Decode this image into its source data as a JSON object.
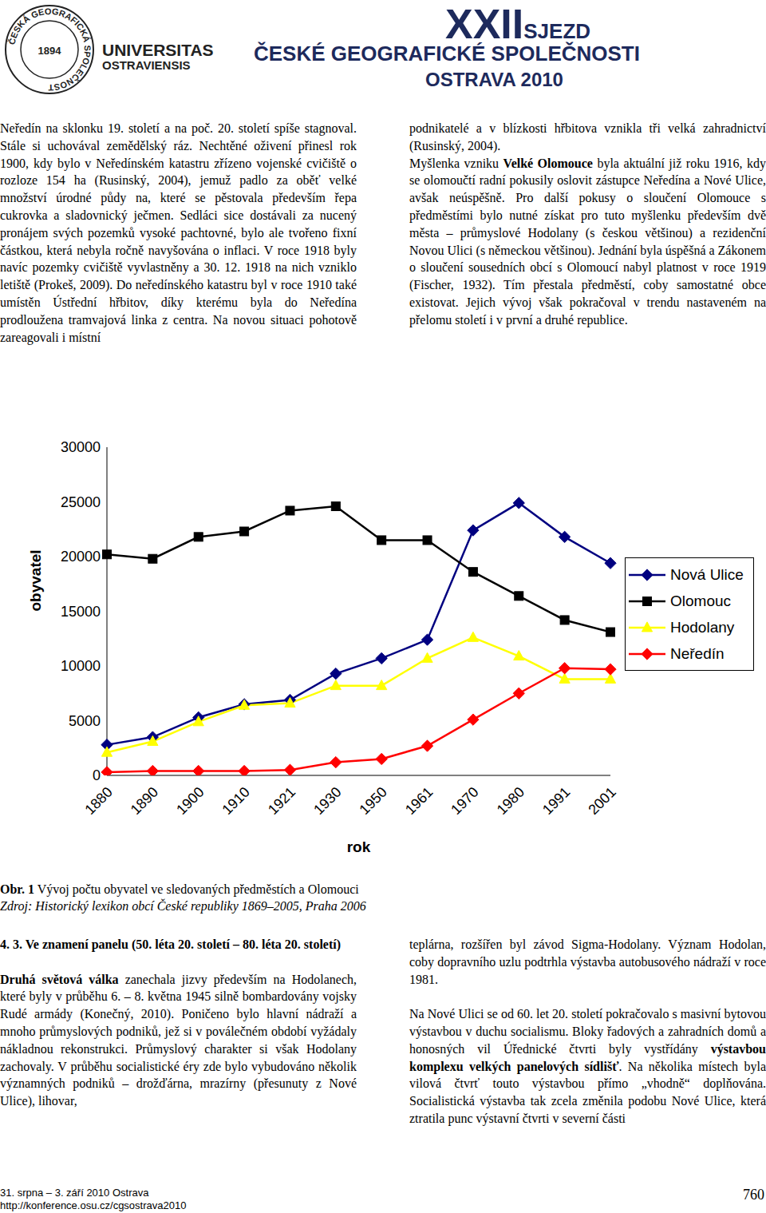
{
  "header": {
    "logo_ring": "ČESKÁ GEOGRAFICKÁ SPOLEČNOST",
    "logo_year": "1894",
    "university": [
      "UNIVERSITAS",
      "OSTRAVIENSIS"
    ],
    "congress_number": "XXII",
    "congress_word": "SJEZD",
    "society": "ČESKÉ GEOGRAFICKÉ SPOLEČNOSTI",
    "place": "OSTRAVA 2010"
  },
  "top_columns": [
    [
      [
        {
          "text": "Neředín na sklonku 19. století a na poč. 20. století spíše stagnoval. Stále si uchovával zemědělský ráz. Nechtěné oživení přinesl rok 1900, kdy bylo v Neředínském katastru zřízeno vojenské cvičiště o rozloze 154 ha (Rusinský, 2004), jemuž padlo za oběť velké množství úrodné půdy na, které se pěstovala především řepa cukrovka a sladovnický ječmen. Sedláci sice dostávali za nucený pronájem svých pozemků vysoké pachtovné, bylo ale tvořeno fixní částkou, která nebyla ročně navyšována o inflaci. V roce 1918 byly navíc pozemky cvičiště vyvlastněny a 30. 12. 1918 na nich vzniklo letiště (Prokeš, 2009). Do neředínského katastru byl v roce 1910 také umístěn Ústřední hřbitov, díky kterému byla do Neředína prodloužena tramvajová linka z centra. Na novou situaci pohotově zareagovali i místní"
        }
      ]
    ],
    [
      [
        {
          "text": "podnikatelé a v blízkosti hřbitova vznikla tři velká zahradnictví (Rusinský, 2004)."
        }
      ],
      [
        {
          "text": "Myšlenka vzniku "
        },
        {
          "text": "Velké Olomouce",
          "bold": true
        },
        {
          "text": " byla aktuální již roku 1916, kdy se olomoučtí radní pokusily oslovit zástupce Neředína a Nové Ulice, avšak neúspěšně. Pro další pokusy o sloučení Olomouce s předměstími bylo nutné získat pro tuto myšlenku především dvě města – průmyslové Hodolany (s českou většinou) a rezidenční Novou Ulici (s německou většinou). Jednání byla úspěšná a Zákonem o sloučení sousedních obcí s Olomoucí nabyl platnost v roce 1919 (Fischer, 1932). Tím přestala předměstí, coby samostatné obce existovat. Jejich vývoj však pokračoval v trendu nastaveném na přelomu století i v první a druhé republice."
        }
      ]
    ]
  ],
  "chart_data": {
    "type": "line",
    "y_label": "obyvatel",
    "x_label": "rok",
    "categories": [
      "1880",
      "1890",
      "1900",
      "1910",
      "1921",
      "1930",
      "1950",
      "1961",
      "1970",
      "1980",
      "1991",
      "2001"
    ],
    "ylim": [
      0,
      30000
    ],
    "yticks": [
      0,
      5000,
      10000,
      15000,
      20000,
      25000,
      30000
    ],
    "grid": false,
    "legend": "right",
    "series": [
      {
        "name": "Nová Ulice",
        "color": "#000080",
        "marker": "diamond",
        "values": [
          2800,
          3500,
          5300,
          6500,
          6900,
          9300,
          10700,
          12400,
          22400,
          24900,
          21800,
          19400
        ]
      },
      {
        "name": "Olomouc",
        "color": "#000000",
        "marker": "square",
        "values": [
          20200,
          19800,
          21800,
          22300,
          24200,
          24600,
          21500,
          21500,
          18600,
          16400,
          14200,
          13100
        ]
      },
      {
        "name": "Hodolany",
        "color": "#ffff00",
        "marker": "triangle",
        "values": [
          2100,
          3100,
          4900,
          6400,
          6600,
          8200,
          8200,
          10700,
          12600,
          10900,
          8800,
          8800
        ]
      },
      {
        "name": "Neředín",
        "color": "#ff0000",
        "marker": "diamond",
        "values": [
          300,
          400,
          400,
          400,
          500,
          1200,
          1500,
          2700,
          5100,
          7500,
          9800,
          9700
        ]
      }
    ]
  },
  "caption": [
    {
      "text": "Obr. 1",
      "bold": true
    },
    {
      "text": " Vývoj počtu obyvatel ve sledovaných předměstích a Olomouci"
    }
  ],
  "source": "Zdroj: Historický lexikon obcí České republiky 1869–2005, Praha 2006",
  "section_heading": "4. 3. Ve znamení panelu (50. léta 20. století – 80. léta 20. století)",
  "bottom_columns": [
    [
      [
        {
          "text": "Druhá světová válka",
          "bold": true
        },
        {
          "text": " zanechala jizvy především na Hodolanech, které byly v průběhu 6. – 8. května 1945 silně bombardovány vojsky Rudé armády (Konečný, 2010). Poničeno bylo hlavní nádraží a mnoho průmyslových podniků, jež si v poválečném období vyžádaly nákladnou rekonstrukci. Průmyslový charakter si však Hodolany zachovaly. V průběhu socialistické éry zde bylo vybudováno několik významných podniků – drožďárna, mrazírny (přesunuty z Nové Ulice), lihovar,"
        }
      ]
    ],
    [
      [
        {
          "text": "teplárna, rozšířen byl závod Sigma-Hodolany. Význam Hodolan, coby dopravního uzlu podtrhla výstavba autobusového nádraží v roce 1981."
        }
      ],
      [
        {
          "text": "Na Nové Ulici se od 60. let 20. století pokračovalo s masivní bytovou výstavbou v duchu socialismu. Bloky řadových a zahradních domů a honosných vil Úřednické čtvrti byly vystřídány "
        },
        {
          "text": "výstavbou komplexu velkých panelových sídlišť",
          "bold": true
        },
        {
          "text": ". Na několika místech byla vilová čtvrť touto výstavbou přímo „vhodně“ doplňována. Socialistická výstavba tak zcela změnila podobu Nové Ulice, která ztratila punc výstavní čtvrti v severní části"
        }
      ]
    ]
  ],
  "footer": {
    "date": "31. srpna – 3. září 2010 Ostrava",
    "url": "http://konference.osu.cz/cgsostrava2010",
    "page": "760"
  }
}
